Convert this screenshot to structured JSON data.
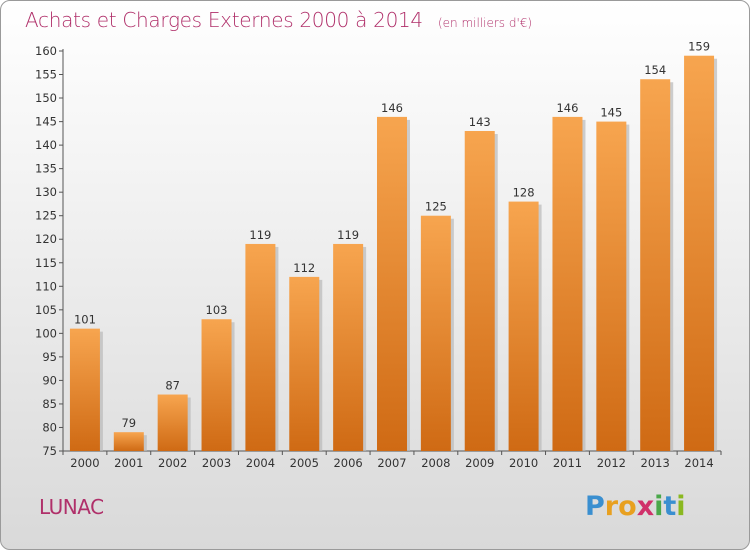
{
  "header": {
    "title": "Achats et Charges Externes 2000 à 2014",
    "unit": "(en milliers d'€)"
  },
  "footer": {
    "place": "LUNAC",
    "logo_letters": [
      "P",
      "r",
      "o",
      "x",
      "i",
      "t",
      "i"
    ],
    "logo_colors": [
      "#3a8fd0",
      "#e8a020",
      "#e8a020",
      "#d0306a",
      "#4aa84a",
      "#3a8fd0",
      "#8ab820"
    ]
  },
  "chart_data": {
    "type": "bar",
    "title": "Achats et Charges Externes 2000 à 2014",
    "subtitle": "(en milliers d'€)",
    "xlabel": "",
    "ylabel": "",
    "categories": [
      "2000",
      "2001",
      "2002",
      "2003",
      "2004",
      "2005",
      "2006",
      "2007",
      "2008",
      "2009",
      "2010",
      "2011",
      "2012",
      "2013",
      "2014"
    ],
    "values": [
      101,
      79,
      87,
      103,
      119,
      112,
      119,
      146,
      125,
      143,
      128,
      146,
      145,
      154,
      159
    ],
    "ylim": [
      75,
      160
    ],
    "yticks": [
      75,
      80,
      85,
      90,
      95,
      100,
      105,
      110,
      115,
      120,
      125,
      130,
      135,
      140,
      145,
      150,
      155,
      160
    ],
    "grid": false,
    "colors": {
      "bar_top": "#f7a54f",
      "bar_bottom": "#cf6a14",
      "shadow": "#b9b9b9"
    }
  }
}
